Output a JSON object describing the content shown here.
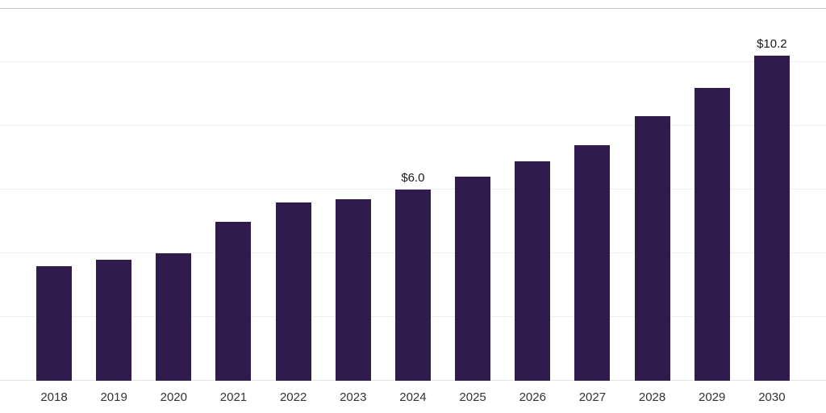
{
  "chart_data": {
    "type": "bar",
    "title": "",
    "xlabel": "",
    "ylabel": "",
    "categories": [
      "2018",
      "2019",
      "2020",
      "2021",
      "2022",
      "2023",
      "2024",
      "2025",
      "2026",
      "2027",
      "2028",
      "2029",
      "2030"
    ],
    "values": [
      3.6,
      3.8,
      4.0,
      5.0,
      5.6,
      5.7,
      6.0,
      6.4,
      6.9,
      7.4,
      8.3,
      9.2,
      10.2
    ],
    "data_labels": [
      "",
      "",
      "",
      "",
      "",
      "",
      "$6.0",
      "",
      "",
      "",
      "",
      "",
      "$10.2"
    ],
    "ylim": [
      0,
      11.7
    ],
    "gridline_values": [
      2,
      4,
      6,
      8,
      10
    ],
    "grid_on": true,
    "legend_position": "none",
    "colors": {
      "bar": "#2f1b4c",
      "grid": "#efefef",
      "top_border": "#c6c6c6",
      "baseline": "#e3e3e3",
      "value_label_text": "#1a1a1a",
      "tick_text": "#333333",
      "background": "#ffffff"
    }
  }
}
